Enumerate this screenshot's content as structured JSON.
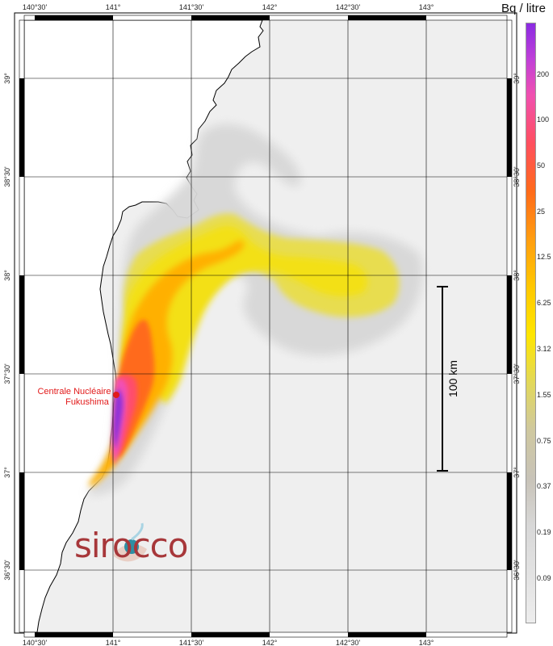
{
  "map": {
    "longitude_labels": [
      "140°30'",
      "141°",
      "141°30'",
      "142°",
      "142°30'",
      "143°"
    ],
    "latitude_labels": [
      "39°",
      "38°30'",
      "38°",
      "37°30'",
      "37°",
      "36°30'"
    ],
    "plant_label_line1": "Centrale Nucléaire",
    "plant_label_line2": "Fukushima",
    "scale_label": "100 km",
    "logo_text": "sirocco"
  },
  "legend": {
    "title": "Bq / litre",
    "ticks": [
      "200",
      "100",
      "50",
      "25",
      "12.5",
      "6.25",
      "3.12",
      "1.55",
      "0.75",
      "0.37",
      "0.19",
      "0.09"
    ]
  },
  "colors": {
    "sea": "#efefef",
    "plant_marker": "#e21b1b",
    "logo": "#a7373a"
  }
}
